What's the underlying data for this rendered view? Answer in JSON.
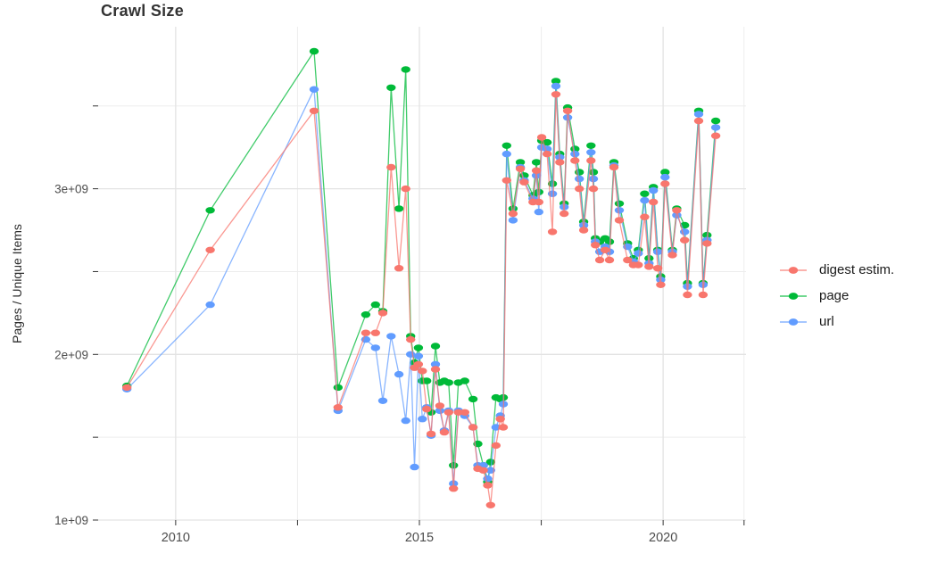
{
  "chart_data": {
    "type": "line",
    "title": "Crawl Size",
    "xlabel": "",
    "ylabel": "Pages / Unique Items",
    "value_unit": "1e+09",
    "xlim": [
      2008.41,
      2021.7
    ],
    "ylim": [
      1.0,
      3.978
    ],
    "grid": true,
    "legend_position": "right",
    "draw_order": [
      1,
      2,
      0
    ],
    "x_ticks": [
      {
        "value": 2010,
        "label": "2010"
      },
      {
        "value": 2015,
        "label": "2015"
      },
      {
        "value": 2020,
        "label": "2020"
      }
    ],
    "x_minor_ticks": [
      2012.5,
      2017.5,
      2021.66
    ],
    "y_ticks": [
      {
        "value": 1,
        "label": "1e+09"
      },
      {
        "value": 2,
        "label": "2e+09"
      },
      {
        "value": 3,
        "label": "3e+09"
      }
    ],
    "y_minor_ticks": [
      1.5,
      2.5,
      3.5
    ],
    "series": [
      {
        "name": "digest estim.",
        "color": "#F8766D",
        "points": [
          [
            2009.0,
            1.8
          ],
          [
            2010.71,
            2.63
          ],
          [
            2012.84,
            3.47
          ],
          [
            2013.33,
            1.68
          ],
          [
            2013.9,
            2.13
          ],
          [
            2014.1,
            2.13
          ],
          [
            2014.25,
            2.25
          ],
          [
            2014.42,
            3.13
          ],
          [
            2014.58,
            2.52
          ],
          [
            2014.72,
            3.0
          ],
          [
            2014.82,
            2.09
          ],
          [
            2014.9,
            1.92
          ],
          [
            2014.98,
            1.94
          ],
          [
            2015.06,
            1.9
          ],
          [
            2015.15,
            1.67
          ],
          [
            2015.24,
            1.52
          ],
          [
            2015.33,
            1.91
          ],
          [
            2015.42,
            1.69
          ],
          [
            2015.51,
            1.53
          ],
          [
            2015.6,
            1.65
          ],
          [
            2015.7,
            1.19
          ],
          [
            2015.8,
            1.65
          ],
          [
            2015.93,
            1.65
          ],
          [
            2016.1,
            1.56
          ],
          [
            2016.2,
            1.31
          ],
          [
            2016.31,
            1.3
          ],
          [
            2016.4,
            1.21
          ],
          [
            2016.46,
            1.09
          ],
          [
            2016.57,
            1.45
          ],
          [
            2016.66,
            1.61
          ],
          [
            2016.72,
            1.56
          ],
          [
            2016.79,
            3.05
          ],
          [
            2016.92,
            2.85
          ],
          [
            2017.07,
            3.12
          ],
          [
            2017.15,
            3.04
          ],
          [
            2017.33,
            2.92
          ],
          [
            2017.4,
            3.11
          ],
          [
            2017.45,
            2.92
          ],
          [
            2017.51,
            3.31
          ],
          [
            2017.62,
            3.21
          ],
          [
            2017.73,
            2.74
          ],
          [
            2017.8,
            3.57
          ],
          [
            2017.88,
            3.16
          ],
          [
            2017.97,
            2.85
          ],
          [
            2018.04,
            3.47
          ],
          [
            2018.19,
            3.17
          ],
          [
            2018.28,
            3.0
          ],
          [
            2018.37,
            2.75
          ],
          [
            2018.52,
            3.17
          ],
          [
            2018.57,
            3.0
          ],
          [
            2018.61,
            2.66
          ],
          [
            2018.7,
            2.57
          ],
          [
            2018.81,
            2.63
          ],
          [
            2018.9,
            2.57
          ],
          [
            2018.99,
            3.13
          ],
          [
            2019.1,
            2.81
          ],
          [
            2019.27,
            2.57
          ],
          [
            2019.39,
            2.54
          ],
          [
            2019.49,
            2.54
          ],
          [
            2019.62,
            2.83
          ],
          [
            2019.71,
            2.53
          ],
          [
            2019.8,
            2.92
          ],
          [
            2019.89,
            2.52
          ],
          [
            2019.95,
            2.42
          ],
          [
            2020.04,
            3.03
          ],
          [
            2020.19,
            2.6
          ],
          [
            2020.28,
            2.87
          ],
          [
            2020.44,
            2.69
          ],
          [
            2020.5,
            2.36
          ],
          [
            2020.73,
            3.41
          ],
          [
            2020.82,
            2.36
          ],
          [
            2020.9,
            2.67
          ],
          [
            2021.08,
            3.32
          ]
        ]
      },
      {
        "name": "page",
        "color": "#00BA38",
        "points": [
          [
            2009.0,
            1.81
          ],
          [
            2010.71,
            2.87
          ],
          [
            2012.84,
            3.83
          ],
          [
            2013.33,
            1.8
          ],
          [
            2013.9,
            2.24
          ],
          [
            2014.1,
            2.3
          ],
          [
            2014.25,
            2.26
          ],
          [
            2014.42,
            3.61
          ],
          [
            2014.58,
            2.88
          ],
          [
            2014.72,
            3.72
          ],
          [
            2014.82,
            2.11
          ],
          [
            2014.9,
            1.95
          ],
          [
            2014.98,
            2.04
          ],
          [
            2015.06,
            1.84
          ],
          [
            2015.15,
            1.84
          ],
          [
            2015.24,
            1.65
          ],
          [
            2015.33,
            2.05
          ],
          [
            2015.42,
            1.83
          ],
          [
            2015.51,
            1.84
          ],
          [
            2015.6,
            1.83
          ],
          [
            2015.7,
            1.33
          ],
          [
            2015.8,
            1.83
          ],
          [
            2015.93,
            1.84
          ],
          [
            2016.1,
            1.73
          ],
          [
            2016.2,
            1.46
          ],
          [
            2016.31,
            1.33
          ],
          [
            2016.4,
            1.23
          ],
          [
            2016.46,
            1.35
          ],
          [
            2016.57,
            1.74
          ],
          [
            2016.66,
            1.73
          ],
          [
            2016.72,
            1.74
          ],
          [
            2016.79,
            3.26
          ],
          [
            2016.92,
            2.88
          ],
          [
            2017.07,
            3.16
          ],
          [
            2017.15,
            3.08
          ],
          [
            2017.33,
            2.96
          ],
          [
            2017.4,
            3.16
          ],
          [
            2017.45,
            2.98
          ],
          [
            2017.51,
            3.29
          ],
          [
            2017.62,
            3.28
          ],
          [
            2017.73,
            3.03
          ],
          [
            2017.8,
            3.65
          ],
          [
            2017.88,
            3.21
          ],
          [
            2017.97,
            2.91
          ],
          [
            2018.04,
            3.49
          ],
          [
            2018.19,
            3.24
          ],
          [
            2018.28,
            3.1
          ],
          [
            2018.37,
            2.8
          ],
          [
            2018.52,
            3.26
          ],
          [
            2018.57,
            3.1
          ],
          [
            2018.61,
            2.7
          ],
          [
            2018.7,
            2.68
          ],
          [
            2018.81,
            2.7
          ],
          [
            2018.9,
            2.68
          ],
          [
            2018.99,
            3.16
          ],
          [
            2019.1,
            2.91
          ],
          [
            2019.27,
            2.67
          ],
          [
            2019.39,
            2.58
          ],
          [
            2019.49,
            2.63
          ],
          [
            2019.62,
            2.97
          ],
          [
            2019.71,
            2.58
          ],
          [
            2019.8,
            3.01
          ],
          [
            2019.89,
            2.63
          ],
          [
            2019.95,
            2.47
          ],
          [
            2020.04,
            3.1
          ],
          [
            2020.19,
            2.63
          ],
          [
            2020.28,
            2.88
          ],
          [
            2020.44,
            2.78
          ],
          [
            2020.5,
            2.43
          ],
          [
            2020.73,
            3.47
          ],
          [
            2020.82,
            2.43
          ],
          [
            2020.9,
            2.72
          ],
          [
            2021.08,
            3.41
          ]
        ]
      },
      {
        "name": "url",
        "color": "#619CFF",
        "points": [
          [
            2009.0,
            1.79
          ],
          [
            2010.71,
            2.3
          ],
          [
            2012.84,
            3.6
          ],
          [
            2013.33,
            1.66
          ],
          [
            2013.9,
            2.09
          ],
          [
            2014.1,
            2.04
          ],
          [
            2014.25,
            1.72
          ],
          [
            2014.42,
            2.11
          ],
          [
            2014.58,
            1.88
          ],
          [
            2014.72,
            1.6
          ],
          [
            2014.82,
            2.0
          ],
          [
            2014.9,
            1.32
          ],
          [
            2014.98,
            1.99
          ],
          [
            2015.06,
            1.61
          ],
          [
            2015.15,
            1.68
          ],
          [
            2015.24,
            1.51
          ],
          [
            2015.33,
            1.94
          ],
          [
            2015.42,
            1.66
          ],
          [
            2015.51,
            1.54
          ],
          [
            2015.6,
            1.66
          ],
          [
            2015.7,
            1.22
          ],
          [
            2015.8,
            1.66
          ],
          [
            2015.93,
            1.63
          ],
          [
            2016.1,
            1.56
          ],
          [
            2016.2,
            1.33
          ],
          [
            2016.31,
            1.33
          ],
          [
            2016.4,
            1.25
          ],
          [
            2016.46,
            1.3
          ],
          [
            2016.57,
            1.56
          ],
          [
            2016.66,
            1.63
          ],
          [
            2016.72,
            1.7
          ],
          [
            2016.79,
            3.21
          ],
          [
            2016.92,
            2.81
          ],
          [
            2017.07,
            3.13
          ],
          [
            2017.15,
            3.05
          ],
          [
            2017.33,
            2.94
          ],
          [
            2017.4,
            3.08
          ],
          [
            2017.45,
            2.86
          ],
          [
            2017.51,
            3.25
          ],
          [
            2017.62,
            3.24
          ],
          [
            2017.73,
            2.97
          ],
          [
            2017.8,
            3.62
          ],
          [
            2017.88,
            3.19
          ],
          [
            2017.97,
            2.89
          ],
          [
            2018.04,
            3.43
          ],
          [
            2018.19,
            3.21
          ],
          [
            2018.28,
            3.06
          ],
          [
            2018.37,
            2.78
          ],
          [
            2018.52,
            3.22
          ],
          [
            2018.57,
            3.06
          ],
          [
            2018.61,
            2.68
          ],
          [
            2018.7,
            2.62
          ],
          [
            2018.81,
            2.65
          ],
          [
            2018.9,
            2.62
          ],
          [
            2018.99,
            3.14
          ],
          [
            2019.1,
            2.87
          ],
          [
            2019.27,
            2.65
          ],
          [
            2019.39,
            2.56
          ],
          [
            2019.49,
            2.61
          ],
          [
            2019.62,
            2.93
          ],
          [
            2019.71,
            2.55
          ],
          [
            2019.8,
            2.99
          ],
          [
            2019.89,
            2.62
          ],
          [
            2019.95,
            2.45
          ],
          [
            2020.04,
            3.07
          ],
          [
            2020.19,
            2.62
          ],
          [
            2020.28,
            2.84
          ],
          [
            2020.44,
            2.74
          ],
          [
            2020.5,
            2.41
          ],
          [
            2020.73,
            3.45
          ],
          [
            2020.82,
            2.42
          ],
          [
            2020.9,
            2.69
          ],
          [
            2021.08,
            3.37
          ]
        ]
      }
    ]
  }
}
